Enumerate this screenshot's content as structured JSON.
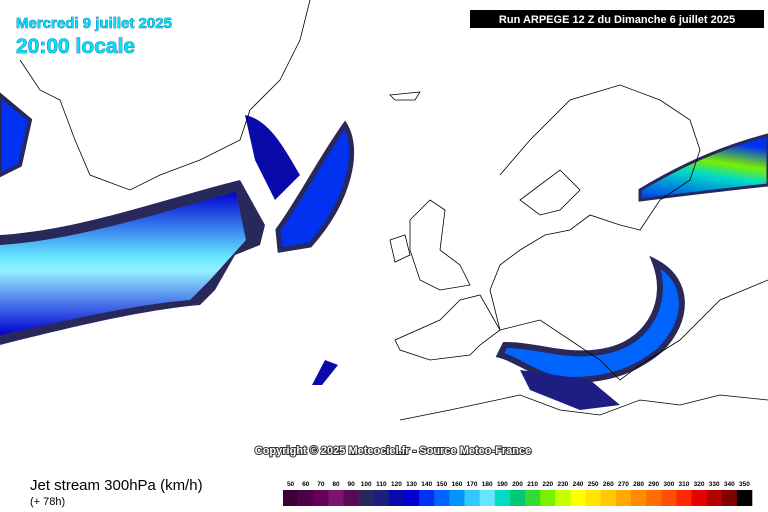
{
  "header": {
    "date": "Mercredi 9 juillet 2025",
    "time": "20:00 locale",
    "run": "Run ARPEGE 12 Z du Dimanche 6 juillet 2025"
  },
  "copyright": "Copyright © 2025 Meteociel.fr - Source Meteo-France",
  "legend": {
    "title": "Jet stream 300hPa (km/h)",
    "lead": "(+ 78h)",
    "items": [
      {
        "label": 50,
        "color": "#3c0032"
      },
      {
        "label": 60,
        "color": "#500046"
      },
      {
        "label": 70,
        "color": "#64005a"
      },
      {
        "label": 80,
        "color": "#7a1470"
      },
      {
        "label": 90,
        "color": "#5a0a50"
      },
      {
        "label": 100,
        "color": "#28285a"
      },
      {
        "label": 110,
        "color": "#1e1e82"
      },
      {
        "label": 120,
        "color": "#0a0aaa"
      },
      {
        "label": 130,
        "color": "#0000d2"
      },
      {
        "label": 140,
        "color": "#0032f0"
      },
      {
        "label": 150,
        "color": "#0064ff"
      },
      {
        "label": 160,
        "color": "#0096ff"
      },
      {
        "label": 170,
        "color": "#32c8ff"
      },
      {
        "label": 180,
        "color": "#64e6ff"
      },
      {
        "label": 190,
        "color": "#00dcc8"
      },
      {
        "label": 200,
        "color": "#00c878"
      },
      {
        "label": 210,
        "color": "#32dc32"
      },
      {
        "label": 220,
        "color": "#78f000"
      },
      {
        "label": 230,
        "color": "#c8ff00"
      },
      {
        "label": 240,
        "color": "#ffff00"
      },
      {
        "label": 250,
        "color": "#ffe600"
      },
      {
        "label": 260,
        "color": "#ffc800"
      },
      {
        "label": 270,
        "color": "#ffaa00"
      },
      {
        "label": 280,
        "color": "#ff8c00"
      },
      {
        "label": 290,
        "color": "#ff6e00"
      },
      {
        "label": 300,
        "color": "#ff5000"
      },
      {
        "label": 310,
        "color": "#ff2800"
      },
      {
        "label": 320,
        "color": "#e60000"
      },
      {
        "label": 330,
        "color": "#b40000"
      },
      {
        "label": 340,
        "color": "#820000"
      },
      {
        "label": 350,
        "color": "#000000"
      }
    ]
  }
}
